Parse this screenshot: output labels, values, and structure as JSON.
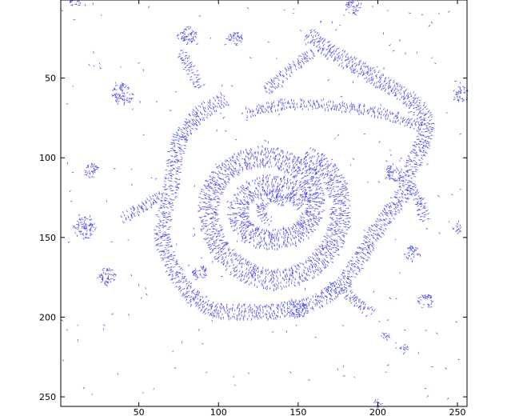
{
  "chart_data": {
    "type": "quiver",
    "title": "",
    "xlabel": "",
    "ylabel": "",
    "xlim": [
      1,
      256
    ],
    "ylim": [
      256,
      1
    ],
    "y_direction": "reversed",
    "grid": false,
    "x_ticks": [
      50,
      100,
      150,
      200,
      250
    ],
    "y_ticks": [
      50,
      100,
      150,
      200,
      250
    ],
    "x_tick_labels": [
      "50",
      "100",
      "150",
      "200",
      "250"
    ],
    "y_tick_labels": [
      "50",
      "100",
      "150",
      "200",
      "250"
    ],
    "arrow_color": "#2a2ae6",
    "axis_color": "#000000",
    "background": "#ffffff",
    "structures": [
      {
        "name": "spiral-arm",
        "polyline": [
          [
            154,
            128
          ],
          [
            147,
            121
          ],
          [
            138,
            117
          ],
          [
            128,
            117
          ],
          [
            119,
            121
          ],
          [
            113,
            128
          ],
          [
            112,
            137
          ],
          [
            115,
            145
          ],
          [
            123,
            150
          ],
          [
            133,
            152
          ],
          [
            145,
            150
          ],
          [
            155,
            144
          ],
          [
            160,
            135
          ],
          [
            161,
            125
          ],
          [
            157,
            114
          ],
          [
            150,
            106
          ],
          [
            140,
            101
          ],
          [
            128,
            99
          ],
          [
            116,
            101
          ],
          [
            106,
            107
          ],
          [
            98,
            116
          ],
          [
            94,
            125
          ],
          [
            93,
            136
          ],
          [
            96,
            148
          ],
          [
            101,
            158
          ],
          [
            110,
            167
          ],
          [
            121,
            174
          ],
          [
            134,
            177
          ],
          [
            148,
            175
          ],
          [
            160,
            168
          ],
          [
            170,
            158
          ],
          [
            175,
            146
          ],
          [
            177,
            134
          ],
          [
            176,
            122
          ],
          [
            172,
            112
          ],
          [
            164,
            104
          ],
          [
            154,
            98
          ]
        ]
      },
      {
        "name": "spiral-inner",
        "polyline": [
          [
            142,
            128
          ],
          [
            136,
            124
          ],
          [
            130,
            125
          ],
          [
            126,
            130
          ],
          [
            127,
            137
          ],
          [
            133,
            141
          ]
        ]
      },
      {
        "name": "upper-band",
        "polyline": [
          [
            118,
            72
          ],
          [
            140,
            67
          ],
          [
            165,
            67
          ],
          [
            190,
            70
          ],
          [
            212,
            75
          ],
          [
            228,
            82
          ]
        ]
      },
      {
        "name": "outer-ring",
        "polyline": [
          [
            156,
            22
          ],
          [
            170,
            33
          ],
          [
            187,
            43
          ],
          [
            204,
            53
          ],
          [
            222,
            64
          ],
          [
            232,
            78
          ],
          [
            228,
            92
          ],
          [
            221,
            106
          ],
          [
            218,
            120
          ],
          [
            208,
            134
          ],
          [
            198,
            148
          ],
          [
            190,
            162
          ],
          [
            181,
            176
          ],
          [
            170,
            186
          ],
          [
            153,
            194
          ],
          [
            133,
            197
          ],
          [
            112,
            197
          ],
          [
            96,
            196
          ],
          [
            84,
            188
          ],
          [
            75,
            177
          ],
          [
            68,
            162
          ],
          [
            64,
            149
          ],
          [
            66,
            135
          ],
          [
            70,
            120
          ],
          [
            72,
            102
          ],
          [
            76,
            86
          ],
          [
            87,
            73
          ],
          [
            104,
            62
          ]
        ]
      },
      {
        "name": "top-diagonal",
        "polyline": [
          [
            130,
            58
          ],
          [
            145,
            45
          ],
          [
            160,
            34
          ]
        ]
      },
      {
        "name": "right-edge",
        "polyline": [
          [
            220,
            118
          ],
          [
            226,
            128
          ],
          [
            230,
            140
          ]
        ]
      },
      {
        "name": "left-edge",
        "polyline": [
          [
            40,
            138
          ],
          [
            52,
            132
          ],
          [
            64,
            124
          ]
        ]
      },
      {
        "name": "bottom-right-edge",
        "polyline": [
          [
            170,
            180
          ],
          [
            186,
            190
          ],
          [
            196,
            198
          ]
        ]
      },
      {
        "name": "top-left-edge",
        "polyline": [
          [
            76,
            34
          ],
          [
            82,
            44
          ],
          [
            88,
            56
          ]
        ]
      }
    ],
    "patches": [
      {
        "center": [
          10,
          2
        ],
        "radius": 4
      },
      {
        "center": [
          40,
          60
        ],
        "radius": 7
      },
      {
        "center": [
          20,
          108
        ],
        "radius": 5
      },
      {
        "center": [
          16,
          144
        ],
        "radius": 7
      },
      {
        "center": [
          30,
          175
        ],
        "radius": 6
      },
      {
        "center": [
          80,
          23
        ],
        "radius": 6
      },
      {
        "center": [
          110,
          25
        ],
        "radius": 5
      },
      {
        "center": [
          210,
          110
        ],
        "radius": 6
      },
      {
        "center": [
          252,
          60
        ],
        "radius": 5
      },
      {
        "center": [
          222,
          160
        ],
        "radius": 5
      },
      {
        "center": [
          230,
          190
        ],
        "radius": 5
      },
      {
        "center": [
          205,
          212
        ],
        "radius": 3
      },
      {
        "center": [
          88,
          172
        ],
        "radius": 5
      },
      {
        "center": [
          150,
          195
        ],
        "radius": 6
      },
      {
        "center": [
          200,
          254
        ],
        "radius": 3
      },
      {
        "center": [
          250,
          145
        ],
        "radius": 3
      },
      {
        "center": [
          216,
          220
        ],
        "radius": 3
      },
      {
        "center": [
          185,
          5
        ],
        "radius": 5
      }
    ]
  }
}
